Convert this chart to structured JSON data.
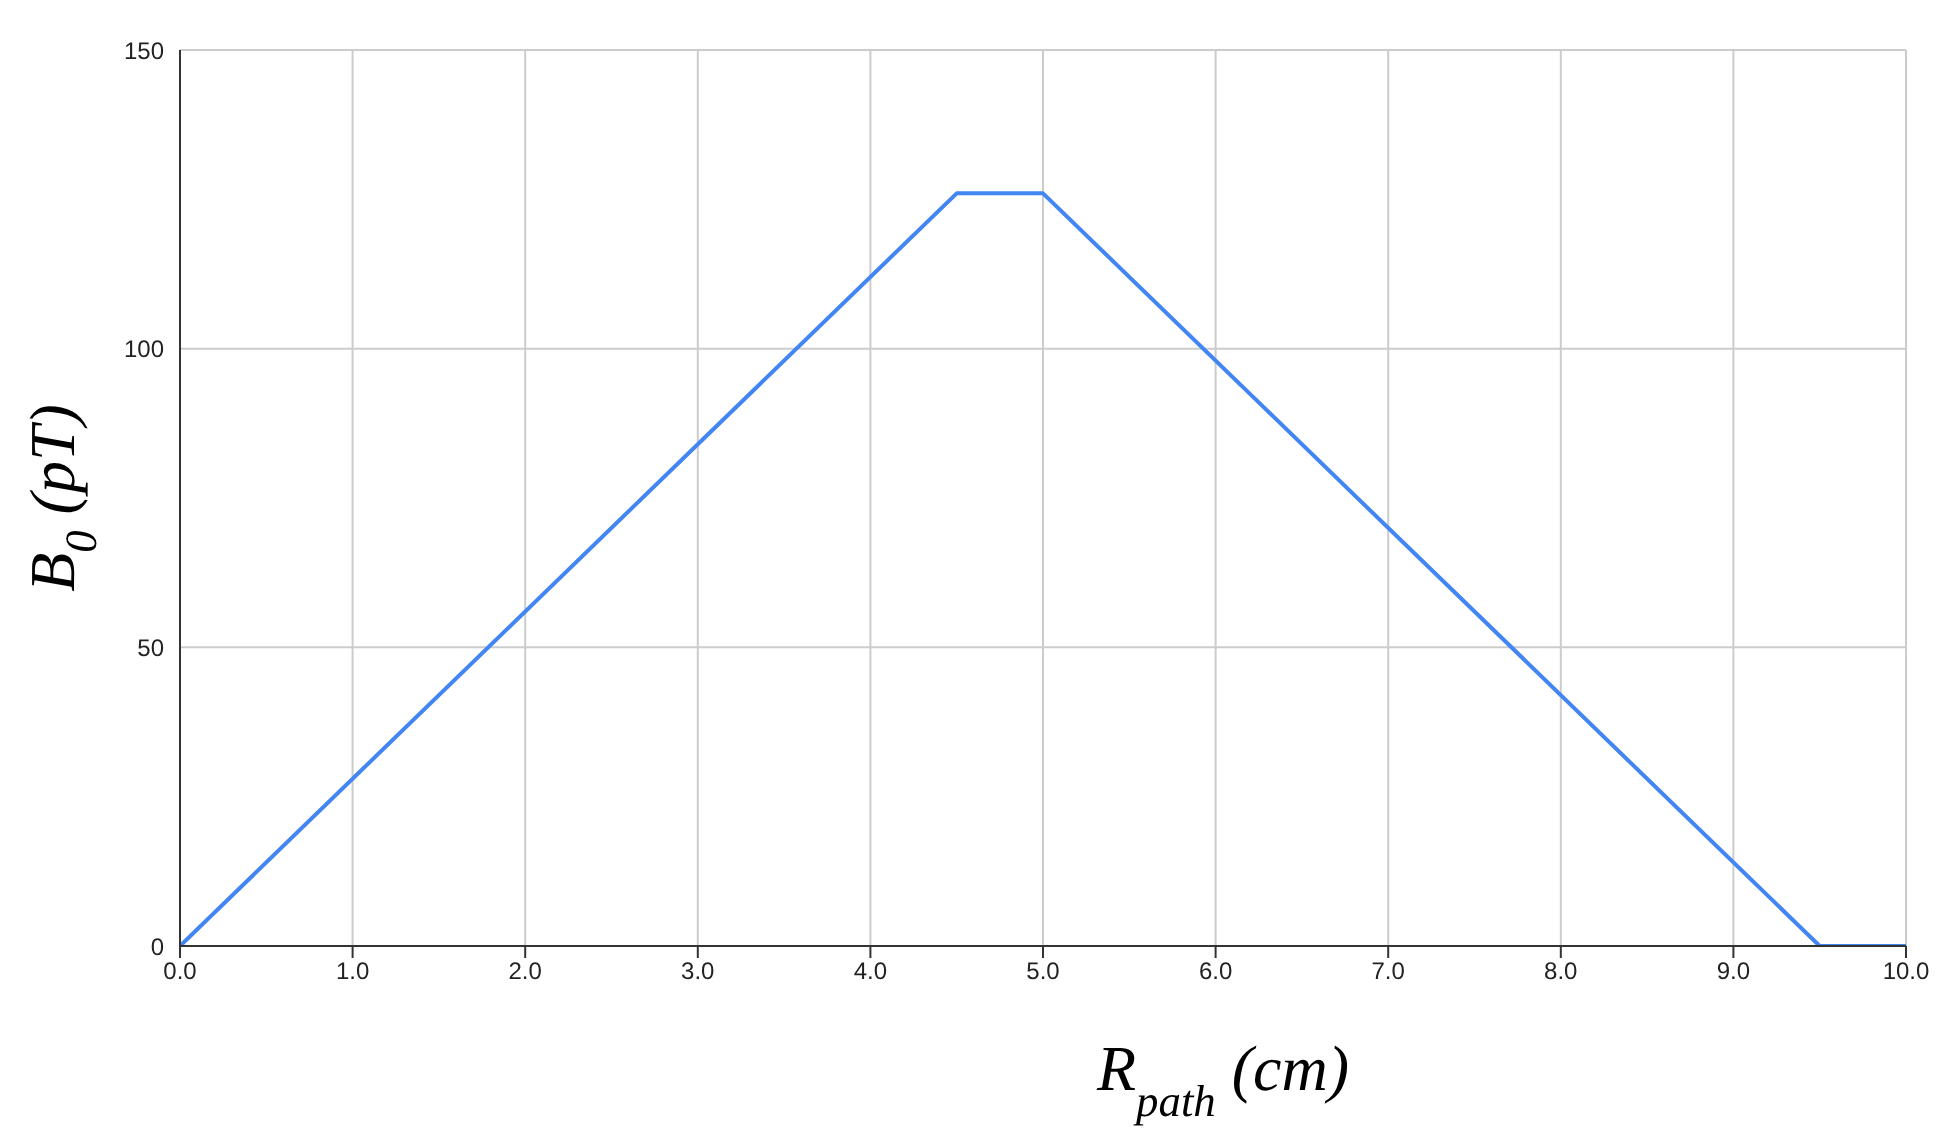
{
  "chart_data": {
    "type": "line",
    "xlabel": "R$_{path}$ (cm)",
    "ylabel": "B$_{0}$ (pT)",
    "x": [
      0,
      4.5,
      5,
      9.5,
      10
    ],
    "series": [
      {
        "color": "#4285f4",
        "values": [
          0,
          126,
          126,
          0,
          0
        ]
      }
    ],
    "xlim": [
      0,
      10
    ],
    "xticks": [
      {
        "value": 0,
        "label": "0.0"
      },
      {
        "value": 1,
        "label": "1.0"
      },
      {
        "value": 2,
        "label": "2.0"
      },
      {
        "value": 3,
        "label": "3.0"
      },
      {
        "value": 4,
        "label": "4.0"
      },
      {
        "value": 5,
        "label": "5.0"
      },
      {
        "value": 6,
        "label": "6.0"
      },
      {
        "value": 7,
        "label": "7.0"
      },
      {
        "value": 8,
        "label": "8.0"
      },
      {
        "value": 9,
        "label": "9.0"
      },
      {
        "value": 10,
        "label": "10.0"
      }
    ],
    "ylim": [
      0,
      150
    ],
    "yticks": [
      0,
      50,
      100,
      150
    ],
    "grid": true,
    "marker": "none",
    "line_style": "solid"
  }
}
